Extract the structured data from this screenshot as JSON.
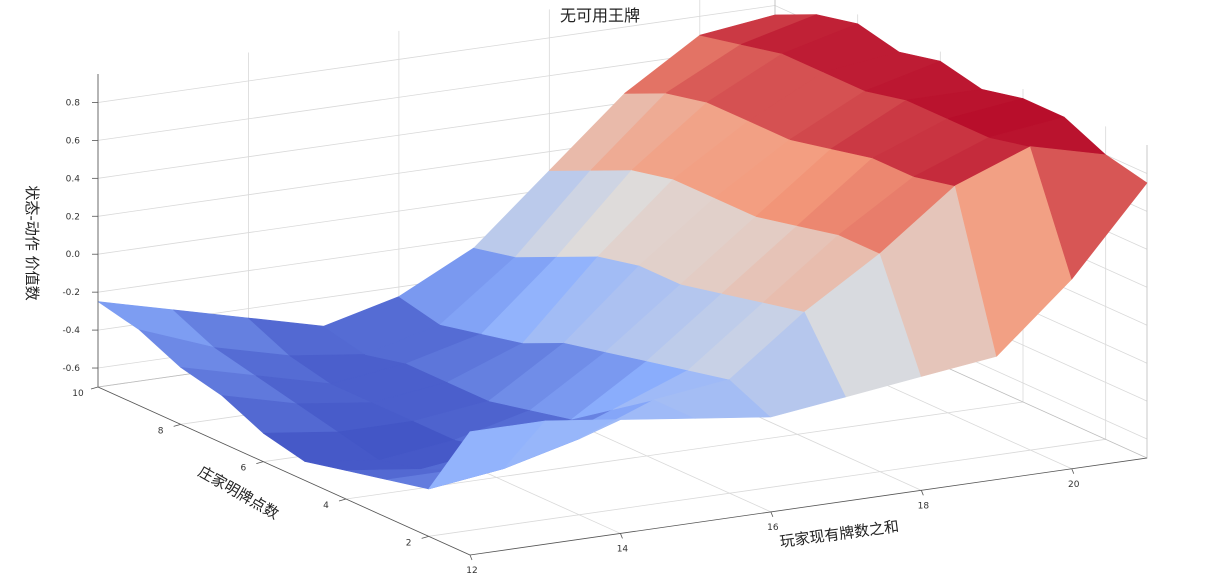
{
  "chart_data": {
    "type": "surface",
    "title": "无可用王牌",
    "xlabel": "玩家现有牌数之和",
    "ylabel": "庄家明牌点数",
    "zlabel": "状态-动作 价值数",
    "x_ticks": [
      "12",
      "14",
      "16",
      "18",
      "20"
    ],
    "y_ticks": [
      "2",
      "4",
      "6",
      "8",
      "10"
    ],
    "z_ticks": [
      "-0.6",
      "-0.4",
      "-0.2",
      "0.0",
      "0.2",
      "0.4",
      "0.6",
      "0.8"
    ],
    "x": [
      12,
      13,
      14,
      15,
      16,
      17,
      18,
      19,
      20,
      21
    ],
    "y": [
      1,
      2,
      3,
      4,
      5,
      6,
      7,
      8,
      9,
      10
    ],
    "xlim": [
      12,
      21
    ],
    "ylim": [
      1,
      10
    ],
    "zlim": [
      -0.7,
      0.95
    ],
    "colormap": "coolwarm",
    "grid": true,
    "z": [
      [
        -0.05,
        -0.05,
        -0.1,
        -0.15,
        -0.2,
        -0.15,
        -0.1,
        -0.05,
        0.3,
        0.75
      ],
      [
        -0.45,
        -0.4,
        -0.3,
        -0.15,
        -0.1,
        0.2,
        0.45,
        0.75,
        0.9,
        0.8
      ],
      [
        -0.5,
        -0.5,
        -0.45,
        -0.3,
        -0.15,
        0.15,
        0.45,
        0.7,
        0.85,
        0.9
      ],
      [
        -0.55,
        -0.6,
        -0.55,
        -0.45,
        -0.2,
        0.1,
        0.4,
        0.7,
        0.85,
        0.9
      ],
      [
        -0.6,
        -0.65,
        -0.6,
        -0.5,
        -0.25,
        0.05,
        0.35,
        0.65,
        0.85,
        0.85
      ],
      [
        -0.55,
        -0.6,
        -0.6,
        -0.55,
        -0.3,
        0.05,
        0.35,
        0.6,
        0.8,
        0.9
      ],
      [
        -0.45,
        -0.55,
        -0.6,
        -0.55,
        -0.4,
        0.0,
        0.35,
        0.6,
        0.8,
        0.85
      ],
      [
        -0.4,
        -0.5,
        -0.6,
        -0.55,
        -0.45,
        -0.1,
        0.3,
        0.6,
        0.8,
        0.9
      ],
      [
        -0.3,
        -0.45,
        -0.55,
        -0.6,
        -0.5,
        -0.2,
        0.2,
        0.55,
        0.75,
        0.85
      ],
      [
        -0.25,
        -0.35,
        -0.45,
        -0.55,
        -0.45,
        -0.25,
        0.1,
        0.45,
        0.7,
        0.75
      ]
    ]
  }
}
